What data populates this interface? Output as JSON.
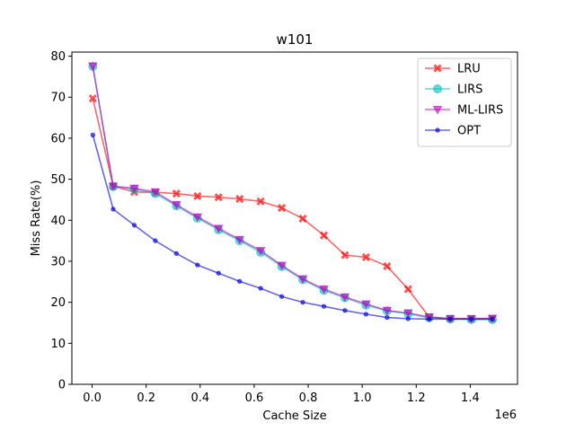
{
  "chart_data": {
    "type": "line",
    "title": "w101",
    "xlabel": "Cache Size",
    "ylabel": "Miss Rate(%)",
    "x_offset_label": "1e6",
    "xlim": [
      -75000,
      1575000
    ],
    "ylim": [
      0,
      81
    ],
    "x_ticks": [
      0,
      200000,
      400000,
      600000,
      800000,
      1000000,
      1200000,
      1400000
    ],
    "x_tick_labels": [
      "0.0",
      "0.2",
      "0.4",
      "0.6",
      "0.8",
      "1.0",
      "1.2",
      "1.4"
    ],
    "y_ticks": [
      0,
      10,
      20,
      30,
      40,
      50,
      60,
      70,
      80
    ],
    "y_tick_labels": [
      "0",
      "10",
      "20",
      "30",
      "40",
      "50",
      "60",
      "70",
      "80"
    ],
    "grid": false,
    "legend_position": "top-right",
    "x": [
      2500,
      78000,
      156000,
      234000,
      312000,
      390000,
      468000,
      546000,
      624000,
      702000,
      780000,
      858000,
      936000,
      1014000,
      1092000,
      1170000,
      1248000,
      1326000,
      1404000,
      1482000
    ],
    "series": [
      {
        "name": "LRU",
        "color": "#ff0000",
        "marker": "x",
        "values": [
          69.7,
          48.3,
          46.9,
          46.8,
          46.5,
          45.9,
          45.6,
          45.2,
          44.6,
          43.0,
          40.4,
          36.3,
          31.5,
          31.0,
          28.8,
          23.2,
          16.4,
          16.0,
          16.0,
          16.0
        ]
      },
      {
        "name": "LIRS",
        "color": "#00c0c0",
        "marker": "o",
        "values": [
          77.5,
          48.2,
          47.6,
          46.5,
          43.5,
          40.5,
          37.7,
          35.0,
          32.2,
          28.7,
          25.5,
          22.9,
          21.1,
          19.3,
          17.9,
          17.2,
          16.2,
          15.9,
          15.8,
          15.8
        ]
      },
      {
        "name": "ML-LIRS",
        "color": "#c000c0",
        "marker": "v",
        "values": [
          77.6,
          48.3,
          47.8,
          46.9,
          43.8,
          40.8,
          38.0,
          35.3,
          32.6,
          29.0,
          25.7,
          23.2,
          21.3,
          19.6,
          18.0,
          17.4,
          16.4,
          16.0,
          16.0,
          16.1
        ]
      },
      {
        "name": "OPT",
        "color": "#0000e0",
        "marker": ".",
        "values": [
          60.8,
          42.7,
          38.8,
          35.0,
          31.9,
          29.1,
          27.1,
          25.1,
          23.4,
          21.4,
          20.0,
          19.0,
          18.0,
          17.1,
          16.3,
          16.0,
          15.9,
          15.9,
          15.9,
          15.9
        ]
      }
    ]
  }
}
